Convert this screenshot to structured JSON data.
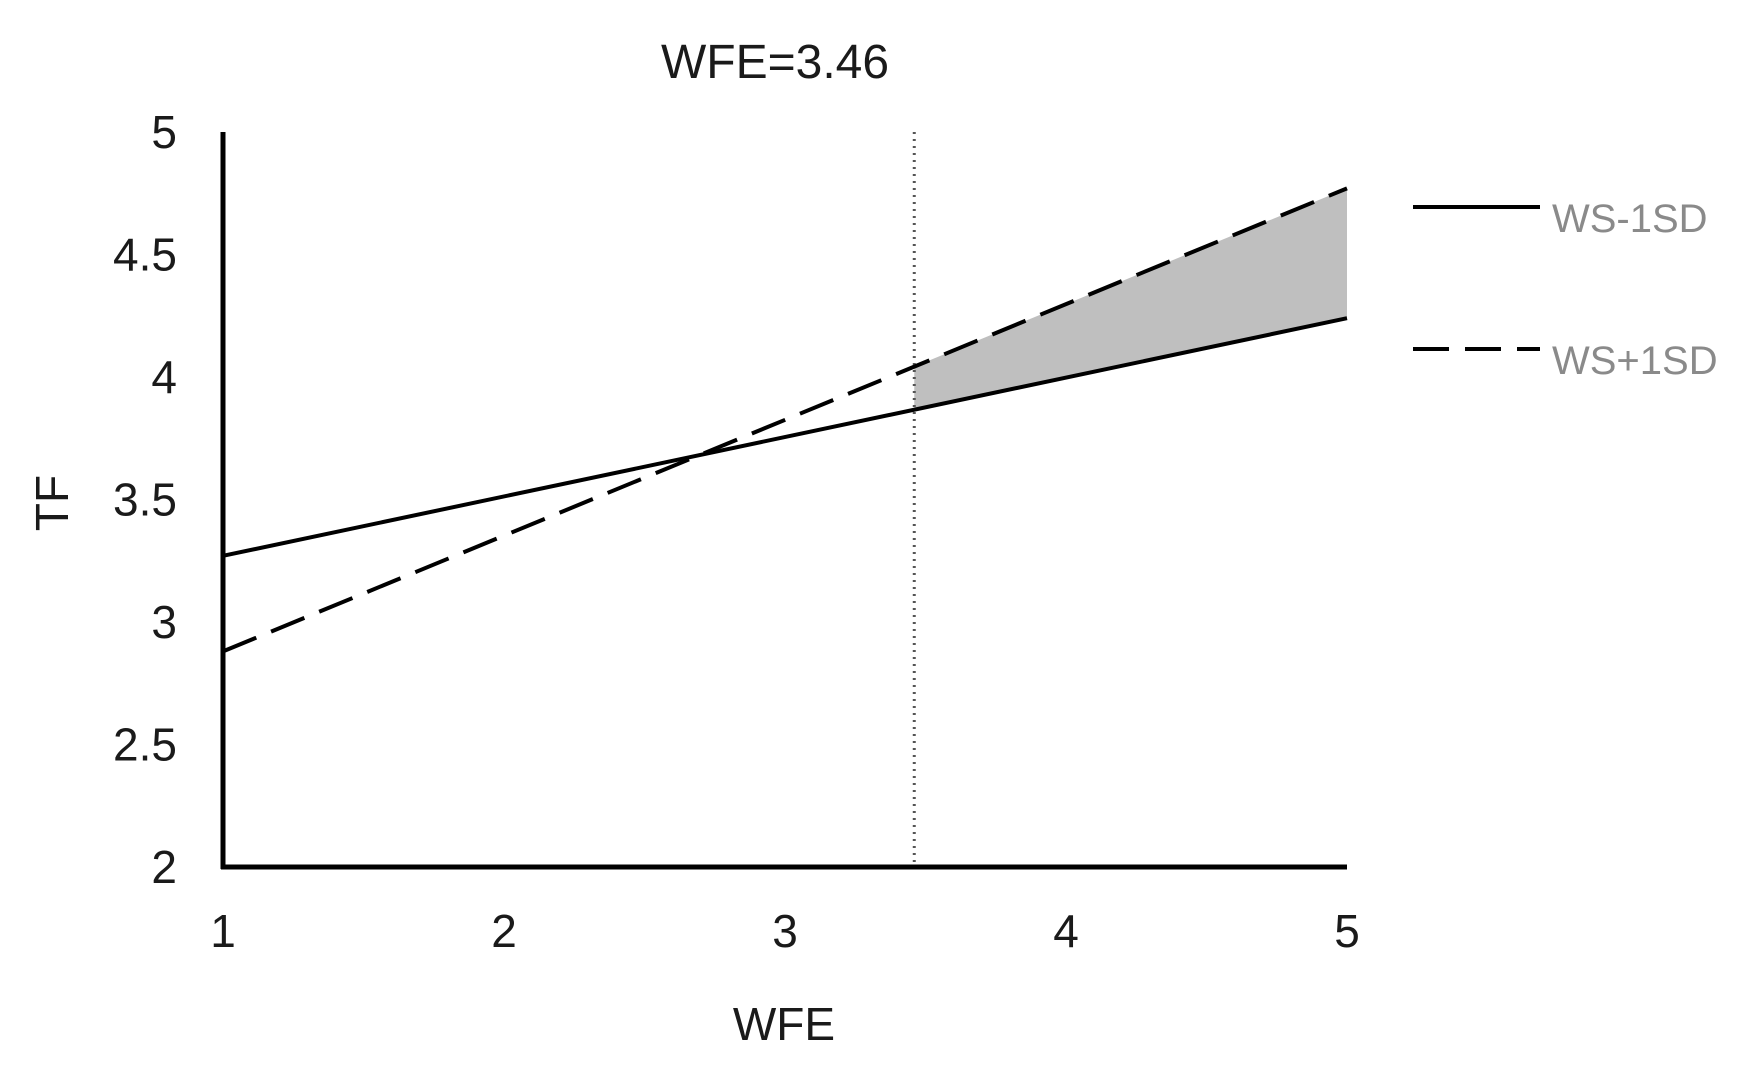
{
  "chart_data": {
    "type": "line",
    "xlabel": "WFE",
    "ylabel": "TF",
    "xlim": [
      1,
      5
    ],
    "ylim": [
      2,
      5
    ],
    "x_ticks": [
      "1",
      "2",
      "3",
      "4",
      "5"
    ],
    "y_ticks": [
      "2",
      "2.5",
      "3",
      "3.5",
      "4",
      "4.5",
      "5"
    ],
    "grid": false,
    "legend_position": "right",
    "series": [
      {
        "name": "WS-1SD",
        "style": "solid",
        "color": "#000000",
        "x": [
          1,
          5
        ],
        "y": [
          3.27,
          4.24
        ]
      },
      {
        "name": "WS+1SD",
        "style": "dashed",
        "color": "#000000",
        "x": [
          1,
          5
        ],
        "y": [
          2.88,
          4.77
        ]
      }
    ],
    "annotation": {
      "label": "WFE=3.46",
      "x": 3.46,
      "line_style": "dotted"
    },
    "shaded_region": {
      "color": "#bfbfbf",
      "x_from": 3.46,
      "x_to": 5,
      "between": [
        "WS+1SD",
        "WS-1SD"
      ]
    }
  }
}
